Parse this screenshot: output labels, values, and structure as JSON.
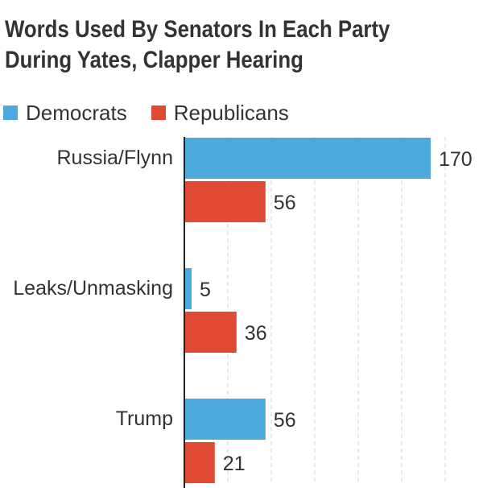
{
  "title_line1": "Words Used By Senators In Each Party",
  "title_line2": "During Yates, Clapper Hearing",
  "colors": {
    "democrats": "#4da9dc",
    "republicans": "#e04a35",
    "grid": "#d6d6d6",
    "axis": "#222222"
  },
  "chart_data": {
    "type": "bar",
    "orientation": "horizontal",
    "title": "Words Used By Senators In Each Party During Yates, Clapper Hearing",
    "categories": [
      "Russia/Flynn",
      "Leaks/Unmasking",
      "Trump"
    ],
    "series": [
      {
        "name": "Democrats",
        "values": [
          170,
          5,
          56
        ]
      },
      {
        "name": "Republicans",
        "values": [
          56,
          36,
          21
        ]
      }
    ],
    "xlim": [
      0,
      180
    ],
    "grid": true,
    "legend": "top-left",
    "data_labels": true
  }
}
